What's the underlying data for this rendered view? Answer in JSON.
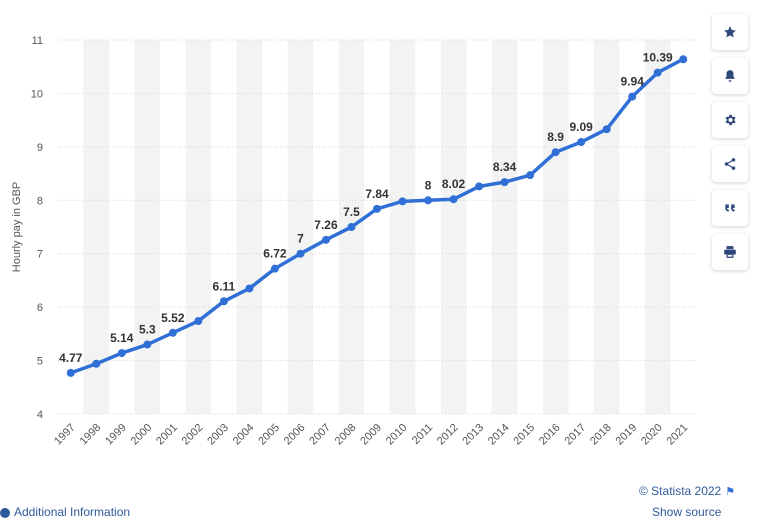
{
  "chart_data": {
    "type": "line",
    "ylabel": "Hourly pay in GBP",
    "xlabel": "",
    "ylim": [
      4,
      11
    ],
    "yticks": [
      "4",
      "5",
      "6",
      "7",
      "8",
      "9",
      "10",
      "11"
    ],
    "categories": [
      "1997",
      "1998",
      "1999",
      "2000",
      "2001",
      "2002",
      "2003",
      "2004",
      "2005",
      "2006",
      "2007",
      "2008",
      "2009",
      "2010",
      "2011",
      "2012",
      "2013",
      "2014",
      "2015",
      "2016",
      "2017",
      "2018",
      "2019",
      "2020",
      "2021"
    ],
    "values": [
      4.77,
      4.94,
      5.14,
      5.3,
      5.52,
      5.74,
      6.11,
      6.35,
      6.72,
      7,
      7.26,
      7.5,
      7.84,
      7.98,
      8,
      8.02,
      8.26,
      8.34,
      8.47,
      8.9,
      9.09,
      9.33,
      9.94,
      10.39,
      10.64
    ],
    "data_labels": [
      "4.77",
      "",
      "5.14",
      "5.3",
      "5.52",
      "",
      "6.11",
      "",
      "6.72",
      "7",
      "7.26",
      "7.5",
      "7.84",
      "",
      "8",
      "8.02",
      "",
      "8.34",
      "",
      "8.9",
      "9.09",
      "",
      "9.94",
      "10.39",
      ""
    ],
    "grid": true,
    "line_color": "#2f6fd6"
  },
  "toolbar": {
    "icons": [
      "star-icon",
      "bell-icon",
      "gear-icon",
      "share-icon",
      "quote-icon",
      "print-icon"
    ]
  },
  "footer": {
    "credit": "© Statista 2022",
    "additional": "Additional Information",
    "show_source": "Show source"
  }
}
